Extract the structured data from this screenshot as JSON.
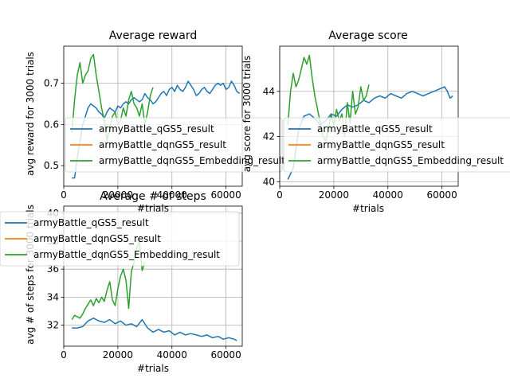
{
  "colors": {
    "qGS5": "#1f77b4",
    "dqnGS5": "#ff7f0e",
    "embedding": "#2ca02c",
    "grid": "#b0b0b0",
    "axis": "#000000"
  },
  "chart_data": [
    {
      "type": "line",
      "title": "Average reward",
      "xlabel": "#trials",
      "ylabel": "avg reward for 3000 trials",
      "xlim": [
        0,
        66000
      ],
      "ylim": [
        0.45,
        0.79
      ],
      "xticks": [
        0,
        20000,
        40000,
        60000
      ],
      "xtick_labels": [
        "0",
        "20000",
        "40000",
        "60000"
      ],
      "yticks": [
        0.5,
        0.6,
        0.7
      ],
      "ytick_labels": [
        "0.5",
        "0.6",
        "0.7"
      ],
      "grid": true,
      "legend": "lower-left",
      "series": [
        {
          "name": "armyBattle_qGS5_result",
          "color": "#1f77b4",
          "x": [
            3000,
            4000,
            5000,
            6000,
            7000,
            8000,
            9000,
            10000,
            11000,
            12000,
            13000,
            14000,
            15000,
            16000,
            17000,
            18000,
            19000,
            20000,
            21000,
            22000,
            23000,
            24000,
            25000,
            26000,
            27000,
            28000,
            29000,
            30000,
            31000,
            32000,
            33000,
            34000,
            35000,
            36000,
            37000,
            38000,
            39000,
            40000,
            41000,
            42000,
            43000,
            44000,
            45000,
            46000,
            47000,
            48000,
            49000,
            50000,
            51000,
            52000,
            53000,
            54000,
            55000,
            56000,
            57000,
            58000,
            59000,
            60000,
            61000,
            62000,
            63000,
            64000,
            65000
          ],
          "y": [
            0.47,
            0.47,
            0.52,
            0.56,
            0.6,
            0.62,
            0.64,
            0.65,
            0.645,
            0.64,
            0.63,
            0.625,
            0.615,
            0.63,
            0.64,
            0.635,
            0.63,
            0.645,
            0.64,
            0.65,
            0.655,
            0.65,
            0.66,
            0.665,
            0.66,
            0.655,
            0.66,
            0.675,
            0.665,
            0.66,
            0.65,
            0.655,
            0.665,
            0.675,
            0.68,
            0.67,
            0.685,
            0.69,
            0.68,
            0.695,
            0.685,
            0.68,
            0.69,
            0.705,
            0.695,
            0.685,
            0.67,
            0.675,
            0.685,
            0.69,
            0.68,
            0.675,
            0.685,
            0.695,
            0.7,
            0.695,
            0.7,
            0.685,
            0.69,
            0.705,
            0.695,
            0.68,
            0.675
          ]
        },
        {
          "name": "armyBattle_dqnGS5_result",
          "color": "#ff7f0e",
          "x": [],
          "y": []
        },
        {
          "name": "armyBattle_dqnGS5_Embedding_result",
          "color": "#2ca02c",
          "x": [
            3000,
            4000,
            5000,
            6000,
            7000,
            8000,
            9000,
            10000,
            11000,
            12000,
            13000,
            14000,
            15000,
            16000,
            17000,
            18000,
            19000,
            20000,
            21000,
            22000,
            23000,
            24000,
            25000,
            26000,
            27000,
            28000,
            29000,
            30000,
            31000,
            32000,
            33000
          ],
          "y": [
            0.58,
            0.66,
            0.72,
            0.75,
            0.7,
            0.72,
            0.73,
            0.76,
            0.77,
            0.72,
            0.68,
            0.64,
            0.61,
            0.56,
            0.59,
            0.62,
            0.63,
            0.6,
            0.61,
            0.64,
            0.62,
            0.66,
            0.68,
            0.65,
            0.64,
            0.62,
            0.65,
            0.6,
            0.63,
            0.67,
            0.69
          ]
        }
      ]
    },
    {
      "type": "line",
      "title": "Average score",
      "xlabel": "#trials",
      "ylabel": "avg score for 3000 trials",
      "xlim": [
        0,
        66000
      ],
      "ylim": [
        39.8,
        46.0
      ],
      "xticks": [
        0,
        20000,
        40000,
        60000
      ],
      "xtick_labels": [
        "0",
        "20000",
        "40000",
        "60000"
      ],
      "yticks": [
        40,
        42,
        44
      ],
      "ytick_labels": [
        "40",
        "42",
        "44"
      ],
      "grid": true,
      "legend": "lower-left",
      "series": [
        {
          "name": "armyBattle_qGS5_result",
          "color": "#1f77b4",
          "x": [
            3000,
            5000,
            7000,
            9000,
            11000,
            13000,
            15000,
            17000,
            19000,
            21000,
            23000,
            25000,
            27000,
            29000,
            31000,
            33000,
            35000,
            37000,
            39000,
            41000,
            43000,
            45000,
            47000,
            49000,
            51000,
            53000,
            55000,
            57000,
            59000,
            61000,
            62000,
            63000,
            64000
          ],
          "y": [
            40.1,
            40.6,
            42.3,
            42.9,
            43.0,
            42.8,
            42.5,
            42.7,
            43.0,
            42.9,
            43.2,
            43.4,
            43.3,
            43.4,
            43.6,
            43.5,
            43.7,
            43.8,
            43.7,
            43.9,
            43.8,
            43.7,
            43.9,
            44.0,
            43.9,
            43.8,
            43.9,
            44.0,
            44.1,
            44.2,
            44.0,
            43.7,
            43.8
          ]
        },
        {
          "name": "armyBattle_dqnGS5_result",
          "color": "#ff7f0e",
          "x": [],
          "y": []
        },
        {
          "name": "armyBattle_dqnGS5_Embedding_result",
          "color": "#2ca02c",
          "x": [
            3000,
            4000,
            5000,
            6000,
            7000,
            8000,
            9000,
            10000,
            11000,
            12000,
            13000,
            14000,
            15000,
            16000,
            17000,
            18000,
            19000,
            20000,
            21000,
            22000,
            23000,
            24000,
            25000,
            26000,
            27000,
            28000,
            29000,
            30000,
            31000,
            32000,
            33000
          ],
          "y": [
            42.5,
            44.0,
            44.8,
            44.2,
            44.5,
            45.0,
            45.5,
            45.2,
            45.6,
            44.6,
            43.8,
            43.2,
            42.6,
            42.0,
            41.8,
            42.3,
            43.0,
            42.5,
            43.2,
            42.7,
            43.0,
            42.0,
            43.5,
            42.6,
            44.0,
            43.0,
            43.3,
            44.2,
            43.6,
            43.8,
            44.3
          ]
        }
      ]
    },
    {
      "type": "line",
      "title": "Average # of steps",
      "xlabel": "#trials",
      "ylabel": "avg # of steps for 3000 trials",
      "xlim": [
        0,
        66000
      ],
      "ylim": [
        30.5,
        40.5
      ],
      "xticks": [
        0,
        20000,
        40000,
        60000
      ],
      "xtick_labels": [
        "0",
        "20000",
        "40000",
        "60000"
      ],
      "yticks": [
        32,
        34,
        36,
        38,
        40
      ],
      "ytick_labels": [
        "32",
        "34",
        "36",
        "38",
        "40"
      ],
      "grid": true,
      "legend": "upper-left",
      "series": [
        {
          "name": "armyBattle_qGS5_result",
          "color": "#1f77b4",
          "x": [
            3000,
            5000,
            7000,
            9000,
            11000,
            13000,
            15000,
            17000,
            19000,
            21000,
            23000,
            25000,
            27000,
            29000,
            31000,
            33000,
            35000,
            37000,
            39000,
            41000,
            43000,
            45000,
            47000,
            49000,
            51000,
            53000,
            55000,
            57000,
            59000,
            61000,
            63000,
            64000
          ],
          "y": [
            31.8,
            31.8,
            31.9,
            32.3,
            32.5,
            32.3,
            32.2,
            32.4,
            32.1,
            32.3,
            32.0,
            32.1,
            31.9,
            32.4,
            31.8,
            31.5,
            31.7,
            31.5,
            31.6,
            31.3,
            31.5,
            31.3,
            31.4,
            31.3,
            31.2,
            31.3,
            31.1,
            31.2,
            31.0,
            31.1,
            31.0,
            30.9
          ]
        },
        {
          "name": "armyBattle_dqnGS5_result",
          "color": "#ff7f0e",
          "x": [],
          "y": []
        },
        {
          "name": "armyBattle_dqnGS5_Embedding_result",
          "color": "#2ca02c",
          "x": [
            3000,
            4000,
            5000,
            6000,
            7000,
            8000,
            9000,
            10000,
            11000,
            12000,
            13000,
            14000,
            15000,
            16000,
            17000,
            18000,
            19000,
            20000,
            21000,
            22000,
            23000,
            24000,
            25000,
            26000,
            27000,
            28000,
            29000,
            30000
          ],
          "y": [
            32.4,
            32.7,
            32.6,
            32.5,
            32.8,
            33.2,
            33.5,
            33.8,
            33.4,
            33.9,
            33.6,
            34.0,
            33.7,
            34.5,
            35.1,
            33.8,
            33.4,
            34.6,
            35.5,
            36.0,
            35.2,
            33.2,
            35.8,
            36.5,
            37.5,
            38.0,
            35.9,
            36.5
          ]
        }
      ]
    }
  ]
}
